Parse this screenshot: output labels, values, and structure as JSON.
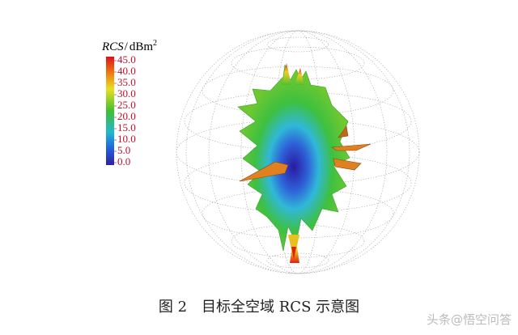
{
  "figure": {
    "colorbar": {
      "quantity": "RCS",
      "separator": "/",
      "unit": "dBm",
      "unit_exponent": "2",
      "ticks": [
        {
          "value": 45,
          "label": "45.0"
        },
        {
          "value": 40,
          "label": "40.0"
        },
        {
          "value": 35,
          "label": "35.0"
        },
        {
          "value": 30,
          "label": "30.0"
        },
        {
          "value": 25,
          "label": "25.0"
        },
        {
          "value": 20,
          "label": "20.0"
        },
        {
          "value": 15,
          "label": "15.0"
        },
        {
          "value": 10,
          "label": "10.0"
        },
        {
          "value": 5,
          "label": "5.0"
        },
        {
          "value": 0,
          "label": "0.0"
        }
      ]
    },
    "caption": "图 2　目标全空域 RCS 示意图",
    "watermark": "头条@悟空问答"
  }
}
